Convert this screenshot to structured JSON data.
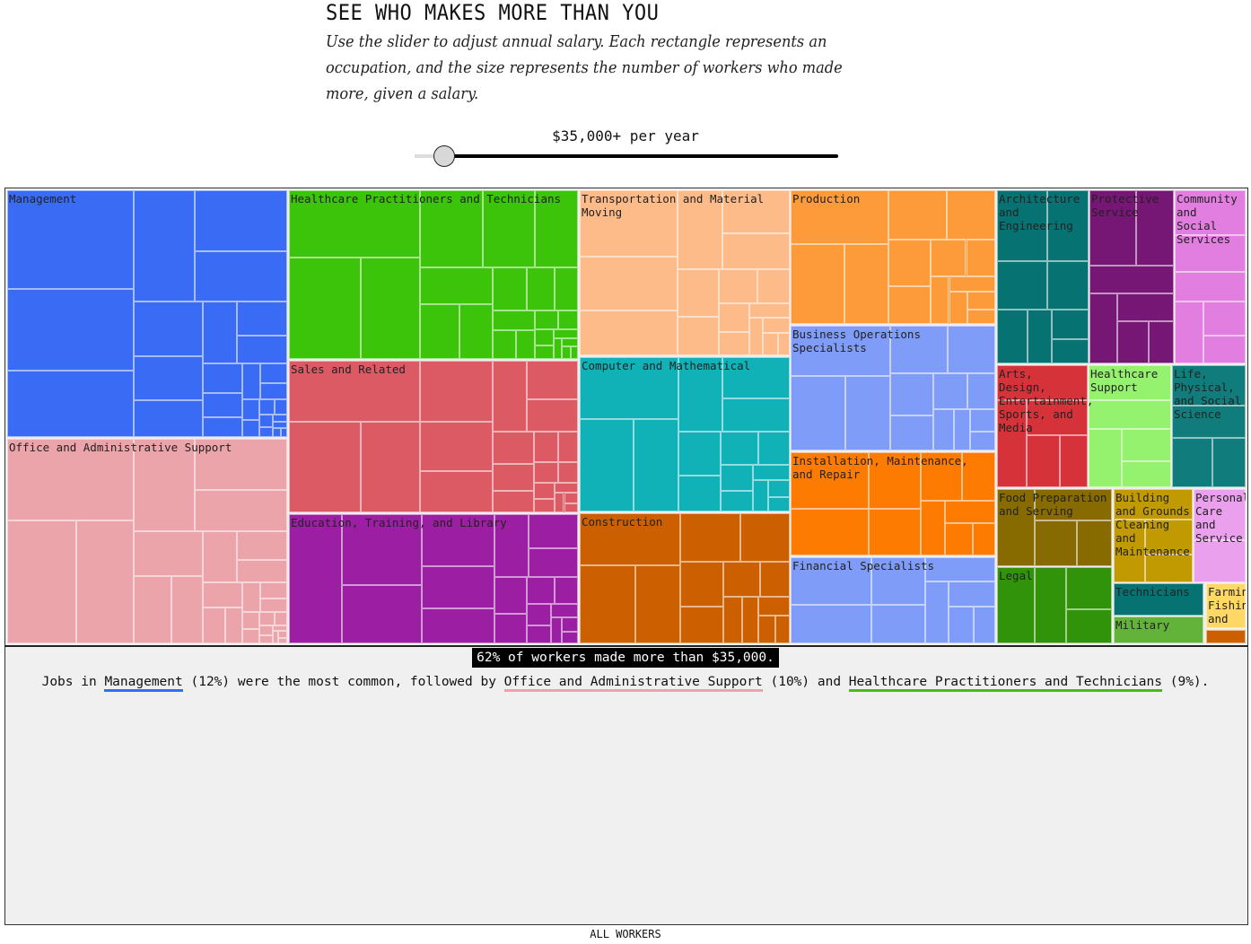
{
  "header": {
    "title": "SEE WHO MAKES MORE THAN YOU",
    "subtitle": "Use the slider to adjust annual salary. Each rectangle represents an occupation, and the size represents the number of workers who made more, given a salary."
  },
  "slider": {
    "label": "$35,000+ per year",
    "value": 35000
  },
  "summary": {
    "text": "62% of workers made more than $35,000.",
    "percent_more": 62
  },
  "jobs_sentence": {
    "prefix": "Jobs in ",
    "first": "Management",
    "first_pct": " (12%) were the most common, followed by ",
    "second": "Office and Administrative Support",
    "second_pct": " (10%) and ",
    "third": "Healthcare Practitioners and Technicians",
    "third_pct": " (9%)."
  },
  "footer": {
    "label": "ALL WORKERS"
  },
  "chart_data": {
    "type": "treemap",
    "title": "SEE WHO MAKES MORE THAN YOU",
    "unit": "share of workers earning $35,000+ (%)",
    "groups": [
      {
        "name": "Management",
        "value": 12.3,
        "color": "#3a6bf5"
      },
      {
        "name": "Office and Administrative Support",
        "value": 10.2,
        "color": "#eba4a9"
      },
      {
        "name": "Healthcare Practitioners and Technicians",
        "value": 8.7,
        "color": "#3cc40a"
      },
      {
        "name": "Sales and Related",
        "value": 7.8,
        "color": "#dc5a64"
      },
      {
        "name": "Education, Training, and Library",
        "value": 6.7,
        "color": "#9c1fa3"
      },
      {
        "name": "Transportation and Material Moving",
        "value": 6.2,
        "color": "#fdbb8a"
      },
      {
        "name": "Computer and Mathematical",
        "value": 5.8,
        "color": "#10b2b8"
      },
      {
        "name": "Construction",
        "value": 4.9,
        "color": "#cc5f00"
      },
      {
        "name": "Production",
        "value": 4.9,
        "color": "#fd9a3a"
      },
      {
        "name": "Business Operations Specialists",
        "value": 4.5,
        "color": "#7f9cf8"
      },
      {
        "name": "Installation, Maintenance, and Repair",
        "value": 3.8,
        "color": "#fd7b00"
      },
      {
        "name": "Financial Specialists",
        "value": 3.1,
        "color": "#7f9cf8"
      },
      {
        "name": "Architecture and Engineering",
        "value": 2.8,
        "color": "#077272"
      },
      {
        "name": "Protective Service",
        "value": 2.6,
        "color": "#761675"
      },
      {
        "name": "Community and Social Services",
        "value": 2.2,
        "color": "#e27ee0"
      },
      {
        "name": "Arts, Design, Entertainment, Sports, and Media",
        "value": 2.0,
        "color": "#d5323a"
      },
      {
        "name": "Healthcare Support",
        "value": 1.8,
        "color": "#95f26e"
      },
      {
        "name": "Life, Physical, and Social Science",
        "value": 1.6,
        "color": "#117c7c"
      },
      {
        "name": "Food Preparation and Serving",
        "value": 1.6,
        "color": "#876a00"
      },
      {
        "name": "Legal",
        "value": 1.6,
        "color": "#31930a"
      },
      {
        "name": "Building and Grounds Cleaning and Maintenance",
        "value": 1.3,
        "color": "#c09a00"
      },
      {
        "name": "Personal Care and Service",
        "value": 0.9,
        "color": "#eaa0ec"
      },
      {
        "name": "Technicians",
        "value": 0.5,
        "color": "#077272"
      },
      {
        "name": "Military",
        "value": 0.4,
        "color": "#63b33a"
      },
      {
        "name": "Farming, Fishing, and Forestry",
        "value": 0.3,
        "color": "#fdd865"
      },
      {
        "name": "",
        "value": 0.1,
        "color": "#cc5f00"
      }
    ]
  }
}
